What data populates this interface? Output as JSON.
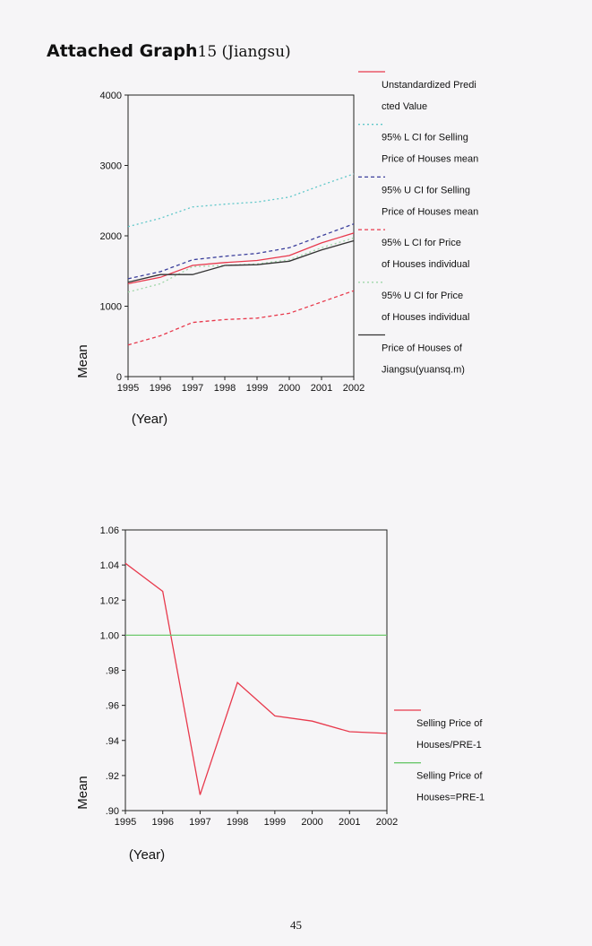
{
  "title": {
    "bold": "Attached Graph",
    "rest": "15 (Jiangsu)"
  },
  "page_number": "45",
  "chart_data": [
    {
      "type": "line",
      "ylabel": "Mean",
      "xlabel": "(Year)",
      "x": [
        "1995",
        "1996",
        "1997",
        "1998",
        "1999",
        "2000",
        "2001",
        "2002"
      ],
      "ylim": [
        0,
        4000
      ],
      "yticks": [
        "0",
        "1000",
        "2000",
        "3000",
        "4000"
      ],
      "grid": false,
      "legend_position": "right",
      "series": [
        {
          "name": "Unstandardized Predicted Value",
          "legend_lines": [
            "Unstandardized Predi",
            "cted Value"
          ],
          "color": "#e8394c",
          "dash": "solid",
          "values": [
            1320,
            1410,
            1580,
            1620,
            1650,
            1720,
            1900,
            2040
          ]
        },
        {
          "name": "95% L CI for Selling Price of Houses mean",
          "legend_lines": [
            "95% L CI for Selling",
            "Price of Houses mean"
          ],
          "color": "#5fc7c9",
          "dash": "dotted",
          "values": [
            2130,
            2250,
            2410,
            2450,
            2480,
            2550,
            2720,
            2880
          ]
        },
        {
          "name": "95% U CI for Selling Price of Houses mean",
          "legend_lines": [
            "95% U CI for Selling",
            "Price of Houses mean"
          ],
          "color": "#3b3f9c",
          "dash": "dashed",
          "values": [
            1390,
            1490,
            1660,
            1710,
            1750,
            1830,
            2000,
            2170
          ]
        },
        {
          "name": "95% L CI for Price of Houses individual",
          "legend_lines": [
            "95% L CI for Price",
            "of Houses individual"
          ],
          "color": "#e8394c",
          "dash": "dashed",
          "values": [
            450,
            580,
            770,
            810,
            830,
            900,
            1060,
            1220
          ]
        },
        {
          "name": "95% U CI for Price of Houses individual",
          "legend_lines": [
            "95% U CI for Price",
            "of Houses individual"
          ],
          "color": "#9fd6a8",
          "dash": "dotted",
          "values": [
            1200,
            1320,
            1560,
            1580,
            1600,
            1660,
            1830,
            1970
          ]
        },
        {
          "name": "Price of Houses of Jiangsu(yuansq.m)",
          "legend_lines": [
            "Price of Houses of",
            "Jiangsu(yuansq.m)"
          ],
          "color": "#333333",
          "dash": "solid",
          "values": [
            1340,
            1450,
            1450,
            1580,
            1590,
            1640,
            1800,
            1930
          ]
        }
      ]
    },
    {
      "type": "line",
      "ylabel": "Mean",
      "xlabel": "(Year)",
      "x": [
        "1995",
        "1996",
        "1997",
        "1998",
        "1999",
        "2000",
        "2001",
        "2002"
      ],
      "ylim": [
        0.9,
        1.06
      ],
      "yticks": [
        ".90",
        ".92",
        ".94",
        ".96",
        ".98",
        "1.00",
        "1.02",
        "1.04",
        "1.06"
      ],
      "grid": false,
      "legend_position": "right",
      "series": [
        {
          "name": "Selling Price of Houses/PRE-1",
          "legend_lines": [
            "Selling Price of",
            "Houses/PRE-1"
          ],
          "color": "#e8394c",
          "dash": "solid",
          "values": [
            1.041,
            1.025,
            0.909,
            0.973,
            0.954,
            0.951,
            0.945,
            0.944
          ]
        },
        {
          "name": "Selling Price of Houses=PRE-1",
          "legend_lines": [
            "Selling Price of",
            "Houses=PRE-1"
          ],
          "color": "#6cc86c",
          "dash": "solid",
          "values": [
            1.0,
            1.0,
            1.0,
            1.0,
            1.0,
            1.0,
            1.0,
            1.0
          ]
        }
      ]
    }
  ]
}
